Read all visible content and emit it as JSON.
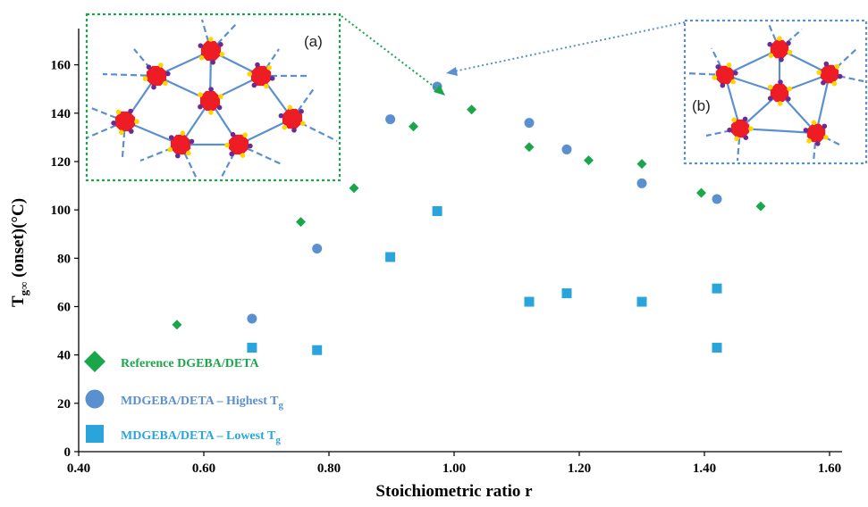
{
  "chart_data": {
    "type": "scatter",
    "xlabel": "Stoichiometric ratio r",
    "ylabel": {
      "main": "T",
      "sub": "g∞",
      "rest": " (onset)(°C)"
    },
    "xlim": [
      0.4,
      1.6
    ],
    "ylim": [
      0,
      175
    ],
    "x_ticks": [
      "0.40",
      "0.60",
      "0.80",
      "1.00",
      "1.20",
      "1.40",
      "1.60"
    ],
    "x_tick_values": [
      0.4,
      0.6,
      0.8,
      1.0,
      1.2,
      1.4,
      1.6
    ],
    "y_ticks": [
      "0",
      "20",
      "40",
      "60",
      "80",
      "100",
      "120",
      "140",
      "160"
    ],
    "y_tick_values": [
      0,
      20,
      40,
      60,
      80,
      100,
      120,
      140,
      160
    ],
    "grid": false,
    "legend_position": "bottom-left",
    "series": [
      {
        "name": "Reference DGEBA/DETA",
        "marker": "diamond",
        "color": "#1aa64b",
        "x": [
          0.557,
          0.755,
          0.84,
          0.935,
          1.028,
          1.12,
          1.215,
          1.3,
          1.395,
          1.49
        ],
        "y": [
          52.5,
          95,
          109,
          134.5,
          141.5,
          126,
          120.5,
          119,
          107,
          101.5
        ]
      },
      {
        "name": "MDGEBA/DETA – Highest T",
        "name_sub": "g",
        "marker": "circle",
        "color": "#5a8fd0",
        "x": [
          0.677,
          0.781,
          0.898,
          0.973,
          1.12,
          1.18,
          1.3,
          1.42
        ],
        "y": [
          55,
          84,
          137.5,
          151,
          136,
          125,
          111,
          104.5
        ]
      },
      {
        "name": "MDGEBA/DETA – Lowest T",
        "name_sub": "g",
        "marker": "square",
        "color": "#2aa5dc",
        "x": [
          0.677,
          0.781,
          0.898,
          0.973,
          1.12,
          1.18,
          1.3,
          1.42,
          1.42
        ],
        "y": [
          43,
          42,
          80.5,
          99.5,
          62,
          65.5,
          62,
          67.5,
          43
        ]
      }
    ],
    "insets": [
      {
        "label": "(a)",
        "color": "#1aa64b"
      },
      {
        "label": "(b)",
        "color": "#5a8fd0"
      }
    ]
  }
}
